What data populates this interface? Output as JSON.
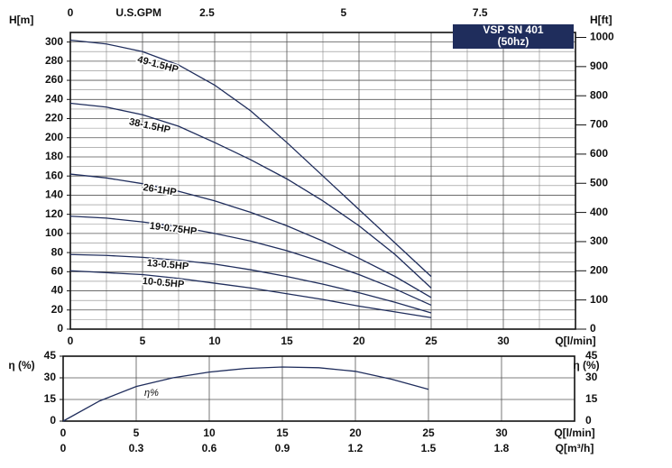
{
  "chart_data": [
    {
      "type": "line",
      "title": "VSP SN 401",
      "subtitle": "(50hz)",
      "x": [
        0,
        2.5,
        5,
        7.5,
        10,
        12.5,
        15,
        17.5,
        20,
        22.5,
        25
      ],
      "series": [
        {
          "name": "49-1.5HP",
          "color": "#1f2d5c",
          "values": [
            302,
            298,
            290,
            276,
            255,
            228,
            195,
            160,
            125,
            90,
            55
          ]
        },
        {
          "name": "38-1.5HP",
          "color": "#1f2d5c",
          "values": [
            236,
            232,
            224,
            212,
            195,
            177,
            157,
            134,
            108,
            78,
            43
          ]
        },
        {
          "name": "26-1HP",
          "color": "#1f2d5c",
          "values": [
            162,
            158,
            152,
            144,
            134,
            122,
            108,
            92,
            74,
            55,
            33
          ]
        },
        {
          "name": "19-0.75HP",
          "color": "#1f2d5c",
          "values": [
            118,
            116,
            112,
            107,
            100,
            92,
            82,
            70,
            57,
            42,
            25
          ]
        },
        {
          "name": "13-0.5HP",
          "color": "#1f2d5c",
          "values": [
            78,
            77,
            75,
            72,
            68,
            62,
            55,
            47,
            38,
            28,
            17
          ]
        },
        {
          "name": "10-0.5HP",
          "color": "#1f2d5c",
          "values": [
            61,
            59,
            57,
            53,
            48,
            43,
            37,
            31,
            24,
            18,
            12
          ]
        }
      ],
      "xlabel": "Q[l/min]",
      "xlim": [
        0,
        35
      ],
      "xticks": [
        0,
        5,
        10,
        15,
        20,
        25,
        30
      ],
      "ylabel": "H[m]",
      "ylim": [
        0,
        310
      ],
      "yticks": [
        0,
        20,
        40,
        60,
        80,
        100,
        120,
        140,
        160,
        180,
        200,
        220,
        240,
        260,
        280,
        300
      ],
      "y2label": "H[ft]",
      "y2lim": [
        0,
        1017
      ],
      "y2ticks": [
        0,
        100,
        200,
        300,
        400,
        500,
        600,
        700,
        800,
        900,
        1000
      ],
      "x2label": "U.S.GPM",
      "x2lim": [
        0,
        9.246
      ],
      "x2ticks": [
        0,
        2.5,
        5,
        7.5
      ],
      "grid": true
    },
    {
      "type": "line",
      "x": [
        0,
        2.5,
        5,
        7.5,
        10,
        12.5,
        15,
        17.5,
        20,
        22.5,
        25
      ],
      "series": [
        {
          "name": "η%",
          "color": "#1f2d5c",
          "values": [
            0,
            14,
            24,
            30,
            34,
            36.5,
            37.5,
            37,
            34.5,
            29,
            22
          ]
        }
      ],
      "xlabel": "Q[l/min]",
      "xlim": [
        0,
        35
      ],
      "xticks": [
        0,
        5,
        10,
        15,
        20,
        25,
        30
      ],
      "ylabel": "η (%)",
      "ylim": [
        0,
        45
      ],
      "yticks": [
        0,
        15,
        30,
        45
      ],
      "x2label": "Q[m³/h]",
      "x2lim": [
        0,
        2.1
      ],
      "x2ticks": [
        0,
        0.3,
        0.6,
        0.9,
        1.2,
        1.5,
        1.8
      ],
      "grid": true
    }
  ]
}
